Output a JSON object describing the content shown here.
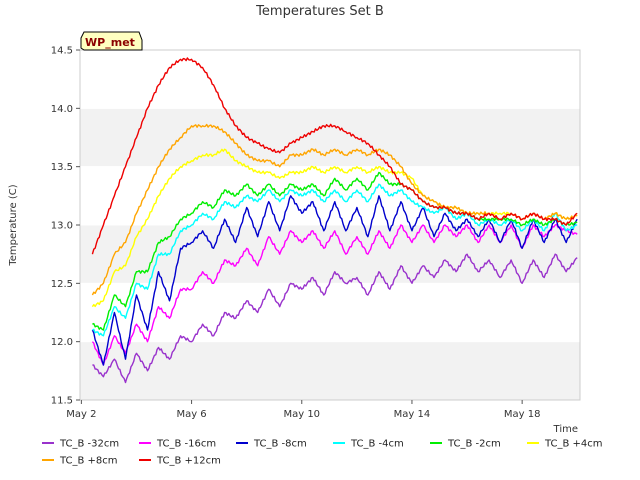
{
  "chart_data": {
    "type": "line",
    "title": "Temperatures Set B",
    "xlabel": "Time",
    "ylabel": "Temperature (C)",
    "badge": "WP_met",
    "xlim": [
      1.95,
      20.1
    ],
    "ylim": [
      11.5,
      14.5
    ],
    "x_ticks": [
      {
        "label": "May 2",
        "value": 2
      },
      {
        "label": "May 6",
        "value": 6
      },
      {
        "label": "May 10",
        "value": 10
      },
      {
        "label": "May 14",
        "value": 14
      },
      {
        "label": "May 18",
        "value": 18
      }
    ],
    "y_ticks": [
      11.5,
      12.0,
      12.5,
      13.0,
      13.5,
      14.0,
      14.5
    ],
    "y_tick_labels": [
      "11.5",
      "12.0",
      "12.5",
      "13.0",
      "13.5",
      "14.0",
      "14.5"
    ],
    "background_bands": "alternating light gray horizontal bands",
    "legend_position": "bottom",
    "x": [
      2.4,
      2.8,
      3.2,
      3.6,
      4.0,
      4.4,
      4.8,
      5.2,
      5.6,
      6.0,
      6.4,
      6.8,
      7.2,
      7.6,
      8.0,
      8.4,
      8.8,
      9.2,
      9.6,
      10.0,
      10.4,
      10.8,
      11.2,
      11.6,
      12.0,
      12.4,
      12.8,
      13.2,
      13.6,
      14.0,
      14.4,
      14.8,
      15.2,
      15.6,
      16.0,
      16.4,
      16.8,
      17.2,
      17.6,
      18.0,
      18.4,
      18.8,
      19.2,
      19.6,
      20.0
    ],
    "series": [
      {
        "name": "TC_B -32cm",
        "color": "#9932cc",
        "values": [
          11.8,
          11.7,
          11.85,
          11.65,
          11.9,
          11.75,
          11.95,
          11.85,
          12.05,
          12.0,
          12.15,
          12.05,
          12.25,
          12.2,
          12.35,
          12.25,
          12.45,
          12.3,
          12.5,
          12.45,
          12.55,
          12.4,
          12.6,
          12.5,
          12.55,
          12.4,
          12.6,
          12.45,
          12.65,
          12.5,
          12.65,
          12.55,
          12.7,
          12.6,
          12.75,
          12.6,
          12.7,
          12.55,
          12.7,
          12.5,
          12.7,
          12.55,
          12.75,
          12.6,
          12.72
        ]
      },
      {
        "name": "TC_B -16cm",
        "color": "#ff00ff",
        "values": [
          12.0,
          11.8,
          12.05,
          11.9,
          12.15,
          12.0,
          12.3,
          12.2,
          12.45,
          12.45,
          12.6,
          12.5,
          12.7,
          12.65,
          12.8,
          12.65,
          12.9,
          12.75,
          12.95,
          12.85,
          12.95,
          12.8,
          12.95,
          12.75,
          12.9,
          12.75,
          12.95,
          12.8,
          13.0,
          12.85,
          13.0,
          12.85,
          13.0,
          12.9,
          13.0,
          12.85,
          13.0,
          12.85,
          13.0,
          12.8,
          13.0,
          12.9,
          13.0,
          12.95,
          12.92
        ]
      },
      {
        "name": "TC_B -8cm",
        "color": "#0000cd",
        "values": [
          12.1,
          11.8,
          12.25,
          11.85,
          12.4,
          12.1,
          12.6,
          12.35,
          12.8,
          12.85,
          12.95,
          12.8,
          13.05,
          12.85,
          13.15,
          12.9,
          13.2,
          12.95,
          13.25,
          13.1,
          13.2,
          12.95,
          13.2,
          12.95,
          13.15,
          12.9,
          13.25,
          12.95,
          13.2,
          12.95,
          13.15,
          12.9,
          13.1,
          12.95,
          13.05,
          12.9,
          13.05,
          12.85,
          13.05,
          12.8,
          13.05,
          12.85,
          13.05,
          12.85,
          13.05
        ]
      },
      {
        "name": "TC_B -4cm",
        "color": "#00ffff",
        "values": [
          12.1,
          12.05,
          12.3,
          12.2,
          12.5,
          12.45,
          12.75,
          12.75,
          12.95,
          13.0,
          13.1,
          13.05,
          13.2,
          13.15,
          13.25,
          13.2,
          13.3,
          13.2,
          13.3,
          13.25,
          13.3,
          13.2,
          13.3,
          13.2,
          13.3,
          13.2,
          13.35,
          13.25,
          13.3,
          13.2,
          13.15,
          13.1,
          13.15,
          13.05,
          13.1,
          13.0,
          13.05,
          13.0,
          13.05,
          12.95,
          13.05,
          12.95,
          13.1,
          12.95,
          13.0
        ]
      },
      {
        "name": "TC_B -2cm",
        "color": "#00ee00",
        "values": [
          12.15,
          12.1,
          12.4,
          12.3,
          12.6,
          12.6,
          12.85,
          12.9,
          13.05,
          13.1,
          13.2,
          13.15,
          13.3,
          13.25,
          13.35,
          13.25,
          13.35,
          13.25,
          13.35,
          13.3,
          13.35,
          13.25,
          13.4,
          13.3,
          13.4,
          13.3,
          13.45,
          13.35,
          13.35,
          13.3,
          13.2,
          13.15,
          13.15,
          13.1,
          13.1,
          13.05,
          13.05,
          13.05,
          13.05,
          13.0,
          13.05,
          13.0,
          13.05,
          13.0,
          13.02
        ]
      },
      {
        "name": "TC_B +4cm",
        "color": "#ffff00",
        "values": [
          12.3,
          12.35,
          12.6,
          12.65,
          12.9,
          13.05,
          13.25,
          13.4,
          13.5,
          13.55,
          13.6,
          13.6,
          13.65,
          13.55,
          13.5,
          13.45,
          13.45,
          13.4,
          13.45,
          13.45,
          13.5,
          13.45,
          13.5,
          13.45,
          13.5,
          13.45,
          13.5,
          13.45,
          13.45,
          13.4,
          13.25,
          13.2,
          13.15,
          13.15,
          13.1,
          13.1,
          13.1,
          13.1,
          13.1,
          13.05,
          13.1,
          13.05,
          13.1,
          13.05,
          13.08
        ]
      },
      {
        "name": "TC_B +8cm",
        "color": "#ffa500",
        "values": [
          12.4,
          12.5,
          12.75,
          12.85,
          13.1,
          13.3,
          13.5,
          13.65,
          13.75,
          13.85,
          13.85,
          13.85,
          13.8,
          13.7,
          13.6,
          13.55,
          13.55,
          13.5,
          13.6,
          13.6,
          13.65,
          13.6,
          13.65,
          13.6,
          13.65,
          13.6,
          13.65,
          13.6,
          13.5,
          13.35,
          13.25,
          13.2,
          13.15,
          13.15,
          13.1,
          13.1,
          13.1,
          13.05,
          13.1,
          13.05,
          13.1,
          13.05,
          13.1,
          13.05,
          13.08
        ]
      },
      {
        "name": "TC_B +12cm",
        "color": "#ee0000",
        "values": [
          12.75,
          13.0,
          13.25,
          13.5,
          13.75,
          14.0,
          14.2,
          14.35,
          14.42,
          14.42,
          14.35,
          14.2,
          14.0,
          13.85,
          13.75,
          13.7,
          13.65,
          13.62,
          13.7,
          13.75,
          13.8,
          13.85,
          13.85,
          13.8,
          13.75,
          13.7,
          13.6,
          13.5,
          13.35,
          13.3,
          13.2,
          13.15,
          13.15,
          13.1,
          13.1,
          13.05,
          13.1,
          13.05,
          13.1,
          13.05,
          13.1,
          13.05,
          13.05,
          13.0,
          13.1
        ]
      }
    ]
  }
}
